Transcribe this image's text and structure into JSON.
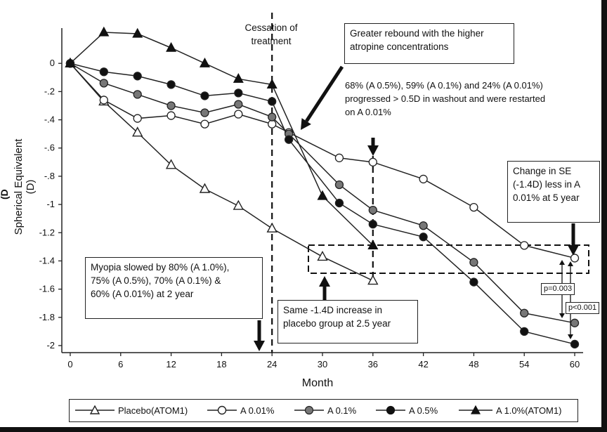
{
  "chart_data": {
    "type": "line",
    "xlabel": "Month",
    "ylabel": "Spherical Equivalent (D)",
    "ylabel_cut": "(D",
    "xticks": [
      0,
      6,
      12,
      18,
      24,
      30,
      36,
      42,
      48,
      54,
      60
    ],
    "yticks": [
      0,
      -0.2,
      -0.4,
      -0.6,
      -0.8,
      -1,
      -1.2,
      -1.4,
      -1.6,
      -1.8,
      -2
    ],
    "ytick_labels": [
      "0",
      "-.2",
      "-.4",
      "-.6",
      "-.8",
      "-1",
      "-1.2",
      "-1.4",
      "-1.6",
      "-1.8",
      "-2"
    ],
    "xlim": [
      -1,
      61
    ],
    "ylim": [
      -2.05,
      0.25
    ],
    "series": [
      {
        "name": "Placebo(ATOM1)",
        "marker": "triangle-open",
        "x": [
          0,
          4,
          8,
          12,
          16,
          20,
          24,
          30,
          36
        ],
        "y": [
          0,
          -0.27,
          -0.49,
          -0.72,
          -0.89,
          -1.01,
          -1.17,
          -1.37,
          -1.54
        ]
      },
      {
        "name": "A 0.01%",
        "marker": "circle-open",
        "x": [
          0,
          4,
          8,
          12,
          16,
          20,
          24,
          26,
          32,
          36,
          42,
          48,
          54,
          60
        ],
        "y": [
          0,
          -0.26,
          -0.39,
          -0.37,
          -0.43,
          -0.36,
          -0.43,
          -0.49,
          -0.67,
          -0.7,
          -0.82,
          -1.02,
          -1.29,
          -1.38
        ]
      },
      {
        "name": "A 0.1%",
        "marker": "circle-gray",
        "x": [
          0,
          4,
          8,
          12,
          16,
          20,
          24,
          26,
          32,
          36,
          42,
          48,
          54,
          60
        ],
        "y": [
          0,
          -0.14,
          -0.22,
          -0.3,
          -0.35,
          -0.29,
          -0.38,
          -0.5,
          -0.86,
          -1.04,
          -1.15,
          -1.41,
          -1.77,
          -1.84
        ]
      },
      {
        "name": "A 0.5%",
        "marker": "circle-filled",
        "x": [
          0,
          4,
          8,
          12,
          16,
          20,
          24,
          26,
          32,
          36,
          42,
          48,
          54,
          60
        ],
        "y": [
          0,
          -0.06,
          -0.09,
          -0.15,
          -0.23,
          -0.21,
          -0.27,
          -0.54,
          -0.99,
          -1.14,
          -1.23,
          -1.55,
          -1.9,
          -1.99
        ]
      },
      {
        "name": "A 1.0%(ATOM1)",
        "marker": "triangle-filled",
        "x": [
          0,
          4,
          8,
          12,
          16,
          20,
          24,
          30,
          36
        ],
        "y": [
          0,
          0.22,
          0.21,
          0.11,
          0.0,
          -0.11,
          -0.15,
          -0.94,
          -1.29
        ]
      }
    ],
    "annotations": {
      "cessation": "Cessation of\ntreatment",
      "rebound": "Greater rebound with the higher\natropine concentrations",
      "washout": "68% (A 0.5%), 59% (A 0.1%) and 24% (A 0.01%)\nprogressed > 0.5D in washout and were restarted\non A 0.01%",
      "change_se": "Change in SE\n(-1.4D) less in A\n0.01% at 5 year",
      "myopia": "Myopia slowed by 80% (A 1.0%),\n75% (A 0.5%), 70% (A 0.1%) &\n60% (A 0.01%) at 2 year",
      "same": "Same -1.4D increase in\nplacebo group at 2.5 year",
      "p1": "p=0.003",
      "p2": "p<0.001"
    }
  }
}
